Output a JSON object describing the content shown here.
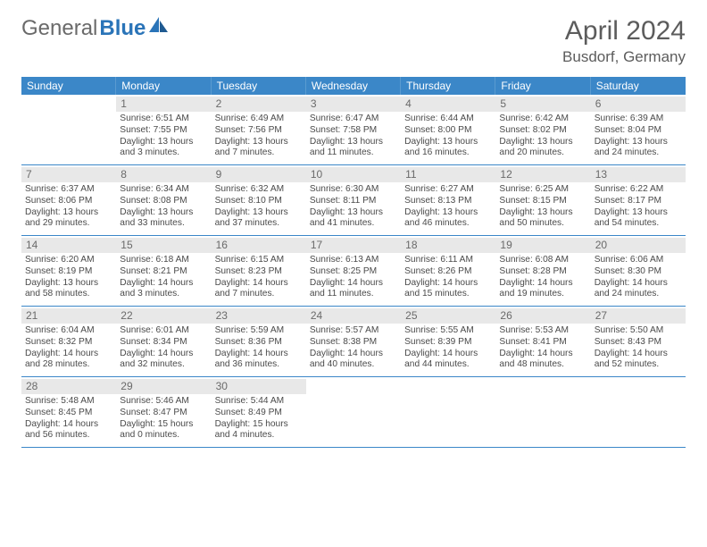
{
  "logo": {
    "text1": "General",
    "text2": "Blue"
  },
  "title": "April 2024",
  "location": "Busdorf, Germany",
  "colors": {
    "header_bg": "#3b87c8",
    "header_text": "#ffffff",
    "daynum_bg": "#e8e8e8",
    "border": "#3b87c8",
    "body_text": "#4a4a4a",
    "title_text": "#5c5c5c"
  },
  "day_names": [
    "Sunday",
    "Monday",
    "Tuesday",
    "Wednesday",
    "Thursday",
    "Friday",
    "Saturday"
  ],
  "weeks": [
    [
      {
        "n": "",
        "lines": [
          "",
          "",
          "",
          ""
        ]
      },
      {
        "n": "1",
        "lines": [
          "Sunrise: 6:51 AM",
          "Sunset: 7:55 PM",
          "Daylight: 13 hours",
          "and 3 minutes."
        ]
      },
      {
        "n": "2",
        "lines": [
          "Sunrise: 6:49 AM",
          "Sunset: 7:56 PM",
          "Daylight: 13 hours",
          "and 7 minutes."
        ]
      },
      {
        "n": "3",
        "lines": [
          "Sunrise: 6:47 AM",
          "Sunset: 7:58 PM",
          "Daylight: 13 hours",
          "and 11 minutes."
        ]
      },
      {
        "n": "4",
        "lines": [
          "Sunrise: 6:44 AM",
          "Sunset: 8:00 PM",
          "Daylight: 13 hours",
          "and 16 minutes."
        ]
      },
      {
        "n": "5",
        "lines": [
          "Sunrise: 6:42 AM",
          "Sunset: 8:02 PM",
          "Daylight: 13 hours",
          "and 20 minutes."
        ]
      },
      {
        "n": "6",
        "lines": [
          "Sunrise: 6:39 AM",
          "Sunset: 8:04 PM",
          "Daylight: 13 hours",
          "and 24 minutes."
        ]
      }
    ],
    [
      {
        "n": "7",
        "lines": [
          "Sunrise: 6:37 AM",
          "Sunset: 8:06 PM",
          "Daylight: 13 hours",
          "and 29 minutes."
        ]
      },
      {
        "n": "8",
        "lines": [
          "Sunrise: 6:34 AM",
          "Sunset: 8:08 PM",
          "Daylight: 13 hours",
          "and 33 minutes."
        ]
      },
      {
        "n": "9",
        "lines": [
          "Sunrise: 6:32 AM",
          "Sunset: 8:10 PM",
          "Daylight: 13 hours",
          "and 37 minutes."
        ]
      },
      {
        "n": "10",
        "lines": [
          "Sunrise: 6:30 AM",
          "Sunset: 8:11 PM",
          "Daylight: 13 hours",
          "and 41 minutes."
        ]
      },
      {
        "n": "11",
        "lines": [
          "Sunrise: 6:27 AM",
          "Sunset: 8:13 PM",
          "Daylight: 13 hours",
          "and 46 minutes."
        ]
      },
      {
        "n": "12",
        "lines": [
          "Sunrise: 6:25 AM",
          "Sunset: 8:15 PM",
          "Daylight: 13 hours",
          "and 50 minutes."
        ]
      },
      {
        "n": "13",
        "lines": [
          "Sunrise: 6:22 AM",
          "Sunset: 8:17 PM",
          "Daylight: 13 hours",
          "and 54 minutes."
        ]
      }
    ],
    [
      {
        "n": "14",
        "lines": [
          "Sunrise: 6:20 AM",
          "Sunset: 8:19 PM",
          "Daylight: 13 hours",
          "and 58 minutes."
        ]
      },
      {
        "n": "15",
        "lines": [
          "Sunrise: 6:18 AM",
          "Sunset: 8:21 PM",
          "Daylight: 14 hours",
          "and 3 minutes."
        ]
      },
      {
        "n": "16",
        "lines": [
          "Sunrise: 6:15 AM",
          "Sunset: 8:23 PM",
          "Daylight: 14 hours",
          "and 7 minutes."
        ]
      },
      {
        "n": "17",
        "lines": [
          "Sunrise: 6:13 AM",
          "Sunset: 8:25 PM",
          "Daylight: 14 hours",
          "and 11 minutes."
        ]
      },
      {
        "n": "18",
        "lines": [
          "Sunrise: 6:11 AM",
          "Sunset: 8:26 PM",
          "Daylight: 14 hours",
          "and 15 minutes."
        ]
      },
      {
        "n": "19",
        "lines": [
          "Sunrise: 6:08 AM",
          "Sunset: 8:28 PM",
          "Daylight: 14 hours",
          "and 19 minutes."
        ]
      },
      {
        "n": "20",
        "lines": [
          "Sunrise: 6:06 AM",
          "Sunset: 8:30 PM",
          "Daylight: 14 hours",
          "and 24 minutes."
        ]
      }
    ],
    [
      {
        "n": "21",
        "lines": [
          "Sunrise: 6:04 AM",
          "Sunset: 8:32 PM",
          "Daylight: 14 hours",
          "and 28 minutes."
        ]
      },
      {
        "n": "22",
        "lines": [
          "Sunrise: 6:01 AM",
          "Sunset: 8:34 PM",
          "Daylight: 14 hours",
          "and 32 minutes."
        ]
      },
      {
        "n": "23",
        "lines": [
          "Sunrise: 5:59 AM",
          "Sunset: 8:36 PM",
          "Daylight: 14 hours",
          "and 36 minutes."
        ]
      },
      {
        "n": "24",
        "lines": [
          "Sunrise: 5:57 AM",
          "Sunset: 8:38 PM",
          "Daylight: 14 hours",
          "and 40 minutes."
        ]
      },
      {
        "n": "25",
        "lines": [
          "Sunrise: 5:55 AM",
          "Sunset: 8:39 PM",
          "Daylight: 14 hours",
          "and 44 minutes."
        ]
      },
      {
        "n": "26",
        "lines": [
          "Sunrise: 5:53 AM",
          "Sunset: 8:41 PM",
          "Daylight: 14 hours",
          "and 48 minutes."
        ]
      },
      {
        "n": "27",
        "lines": [
          "Sunrise: 5:50 AM",
          "Sunset: 8:43 PM",
          "Daylight: 14 hours",
          "and 52 minutes."
        ]
      }
    ],
    [
      {
        "n": "28",
        "lines": [
          "Sunrise: 5:48 AM",
          "Sunset: 8:45 PM",
          "Daylight: 14 hours",
          "and 56 minutes."
        ]
      },
      {
        "n": "29",
        "lines": [
          "Sunrise: 5:46 AM",
          "Sunset: 8:47 PM",
          "Daylight: 15 hours",
          "and 0 minutes."
        ]
      },
      {
        "n": "30",
        "lines": [
          "Sunrise: 5:44 AM",
          "Sunset: 8:49 PM",
          "Daylight: 15 hours",
          "and 4 minutes."
        ]
      },
      {
        "n": "",
        "lines": [
          "",
          "",
          "",
          ""
        ]
      },
      {
        "n": "",
        "lines": [
          "",
          "",
          "",
          ""
        ]
      },
      {
        "n": "",
        "lines": [
          "",
          "",
          "",
          ""
        ]
      },
      {
        "n": "",
        "lines": [
          "",
          "",
          "",
          ""
        ]
      }
    ]
  ]
}
